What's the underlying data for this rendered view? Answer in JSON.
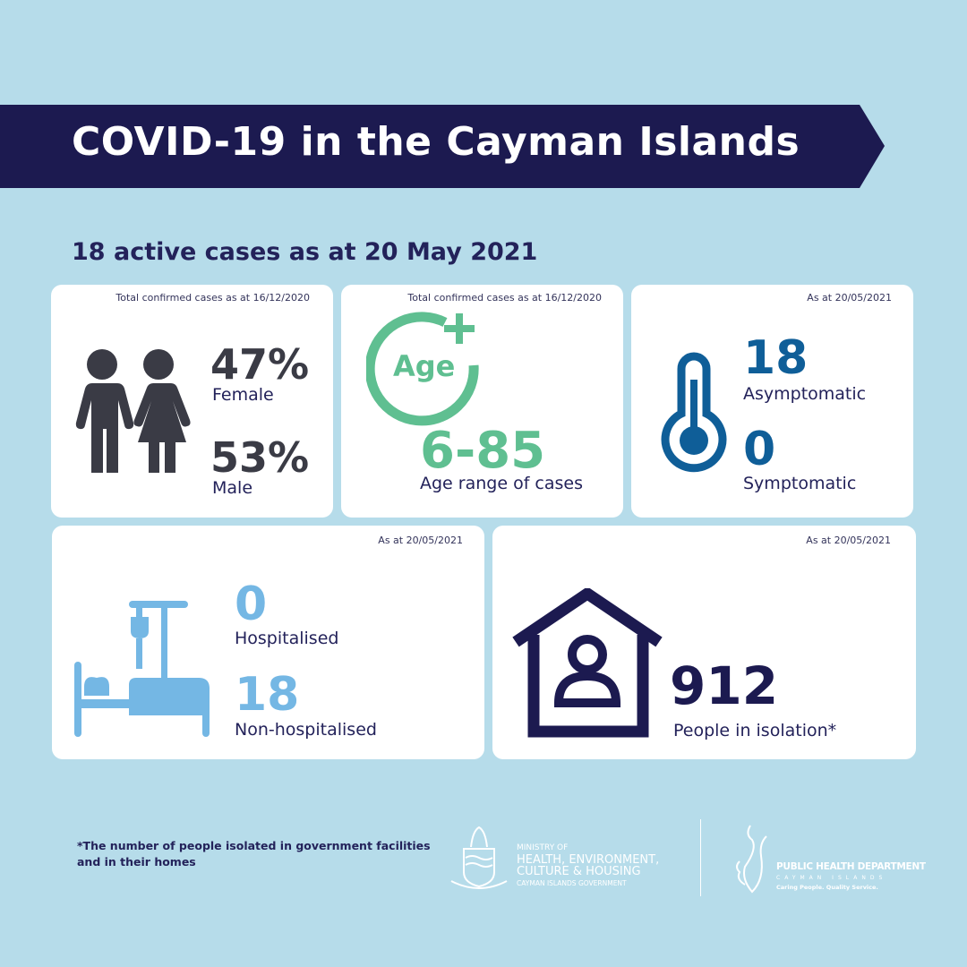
{
  "title": "COVID-19 in the Cayman Islands",
  "subtitle": "18 active cases as at 20 May 2021",
  "cards": {
    "gender": {
      "note": "Total confirmed cases as at 16/12/2020",
      "female_value": "47%",
      "female_label": "Female",
      "male_value": "53%",
      "male_label": "Male"
    },
    "age": {
      "note": "Total confirmed cases as at 16/12/2020",
      "icon_text": "Age",
      "value": "6-85",
      "label": "Age range of cases"
    },
    "symptoms": {
      "note": "As at 20/05/2021",
      "asym_value": "18",
      "asym_label": "Asymptomatic",
      "sym_value": "0",
      "sym_label": "Symptomatic"
    },
    "hospital": {
      "note": "As at 20/05/2021",
      "hosp_value": "0",
      "hosp_label": "Hospitalised",
      "nonhosp_value": "18",
      "nonhosp_label": "Non-hospitalised"
    },
    "isolation": {
      "note": "As at 20/05/2021",
      "value": "912",
      "label": "People in isolation*"
    }
  },
  "footnote": "*The number of people isolated in government facilities and in their homes",
  "logos": {
    "ministry": [
      "MINISTRY OF",
      "HEALTH, ENVIRONMENT,",
      "CULTURE & HOUSING",
      "CAYMAN ISLANDS GOVERNMENT"
    ],
    "phd": [
      "PUBLIC HEALTH DEPARTMENT",
      "CAYMAN ISLANDS",
      "Caring People. Quality Service."
    ]
  },
  "colors": {
    "background": "#b6dcea",
    "banner": "#1c1a50",
    "navy": "#23225a",
    "gray": "#3a3b45",
    "green": "#5fbf91",
    "blue": "#0f5e98",
    "light_blue": "#74b7e4"
  }
}
